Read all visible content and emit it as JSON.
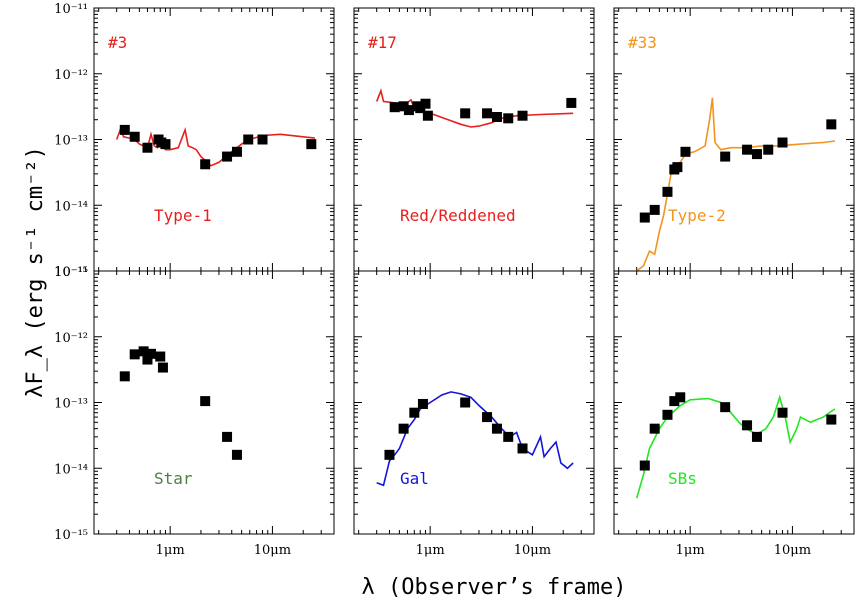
{
  "chart_data": {
    "type": "scatter",
    "xscale": "log",
    "yscale": "log",
    "xlim_um": [
      0.18,
      40
    ],
    "ylim": [
      1e-15,
      1e-11
    ],
    "xlabel": "λ  (Observer’s frame)",
    "ylabel": "λF_λ (erg s⁻¹ cm⁻²)",
    "ytick_labels": [
      "10⁻¹¹",
      "10⁻¹²",
      "10⁻¹³",
      "10⁻¹⁴",
      "10⁻¹⁵"
    ],
    "xtick_labels": [
      "1μm",
      "10μm"
    ],
    "panels": [
      {
        "id": "#3",
        "label": "Type-1",
        "color": "#e8201c",
        "id_color": "#e8201c",
        "points": [
          [
            0.36,
            1.4e-13
          ],
          [
            0.45,
            1.1e-13
          ],
          [
            0.6,
            7.5e-14
          ],
          [
            0.77,
            1e-13
          ],
          [
            0.82,
            9e-14
          ],
          [
            0.9,
            8.5e-14
          ],
          [
            2.2,
            4.2e-14
          ],
          [
            3.6,
            5.5e-14
          ],
          [
            4.5,
            6.5e-14
          ],
          [
            5.8,
            1e-13
          ],
          [
            8,
            1e-13
          ],
          [
            24,
            8.5e-14
          ]
        ],
        "curve": [
          [
            0.3,
            1e-13
          ],
          [
            0.33,
            1.5e-13
          ],
          [
            0.35,
            1.1e-13
          ],
          [
            0.4,
            1.05e-13
          ],
          [
            0.45,
            1e-13
          ],
          [
            0.5,
            8.5e-14
          ],
          [
            0.55,
            8e-14
          ],
          [
            0.6,
            7.5e-14
          ],
          [
            0.65,
            1.2e-13
          ],
          [
            0.7,
            8e-14
          ],
          [
            0.75,
            7.5e-14
          ],
          [
            0.8,
            8.5e-14
          ],
          [
            0.9,
            7e-14
          ],
          [
            1.0,
            7e-14
          ],
          [
            1.2,
            7.5e-14
          ],
          [
            1.4,
            1.4e-13
          ],
          [
            1.5,
            8e-14
          ],
          [
            1.65,
            7.5e-14
          ],
          [
            1.8,
            7e-14
          ],
          [
            2.0,
            5.5e-14
          ],
          [
            2.5,
            4e-14
          ],
          [
            3,
            4.5e-14
          ],
          [
            4,
            6.5e-14
          ],
          [
            5,
            8.5e-14
          ],
          [
            6,
            1e-13
          ],
          [
            8,
            1.15e-13
          ],
          [
            12,
            1.2e-13
          ],
          [
            20,
            1.1e-13
          ],
          [
            26,
            1.05e-13
          ]
        ]
      },
      {
        "id": "#17",
        "label": "Red/Reddened",
        "color": "#e8201c",
        "id_color": "#e8201c",
        "points": [
          [
            0.45,
            3.1e-13
          ],
          [
            0.55,
            3.2e-13
          ],
          [
            0.62,
            2.8e-13
          ],
          [
            0.75,
            3.2e-13
          ],
          [
            0.8,
            3e-13
          ],
          [
            0.9,
            3.5e-13
          ],
          [
            0.95,
            2.3e-13
          ],
          [
            2.2,
            2.5e-13
          ],
          [
            3.6,
            2.5e-13
          ],
          [
            4.5,
            2.2e-13
          ],
          [
            5.8,
            2.1e-13
          ],
          [
            8,
            2.3e-13
          ],
          [
            24,
            3.6e-13
          ]
        ],
        "curve": [
          [
            0.3,
            3.8e-13
          ],
          [
            0.33,
            5.5e-13
          ],
          [
            0.35,
            3.8e-13
          ],
          [
            0.45,
            3.6e-13
          ],
          [
            0.55,
            3.3e-13
          ],
          [
            0.65,
            4e-13
          ],
          [
            0.7,
            3e-13
          ],
          [
            0.8,
            2.8e-13
          ],
          [
            1.0,
            2.5e-13
          ],
          [
            1.5,
            2e-13
          ],
          [
            2,
            1.7e-13
          ],
          [
            2.5,
            1.55e-13
          ],
          [
            3,
            1.6e-13
          ],
          [
            4,
            1.8e-13
          ],
          [
            5,
            2.1e-13
          ],
          [
            7,
            2.3e-13
          ],
          [
            12,
            2.4e-13
          ],
          [
            25,
            2.5e-13
          ]
        ]
      },
      {
        "id": "#33",
        "label": "Type-2",
        "color": "#f0961e",
        "id_color": "#f0961e",
        "points": [
          [
            0.36,
            6.5e-15
          ],
          [
            0.45,
            8.5e-15
          ],
          [
            0.6,
            1.6e-14
          ],
          [
            0.7,
            3.5e-14
          ],
          [
            0.75,
            3.8e-14
          ],
          [
            0.9,
            6.5e-14
          ],
          [
            2.2,
            5.5e-14
          ],
          [
            3.6,
            7e-14
          ],
          [
            4.5,
            6e-14
          ],
          [
            5.8,
            7e-14
          ],
          [
            8,
            9e-14
          ],
          [
            24,
            1.7e-13
          ]
        ],
        "curve": [
          [
            0.3,
            1e-15
          ],
          [
            0.35,
            1.2e-15
          ],
          [
            0.4,
            2e-15
          ],
          [
            0.45,
            1.8e-15
          ],
          [
            0.5,
            4e-15
          ],
          [
            0.55,
            7e-15
          ],
          [
            0.6,
            1.5e-14
          ],
          [
            0.65,
            3e-14
          ],
          [
            0.7,
            4e-14
          ],
          [
            0.8,
            4.5e-14
          ],
          [
            0.9,
            6e-14
          ],
          [
            1.1,
            6.5e-14
          ],
          [
            1.4,
            8e-14
          ],
          [
            1.55,
            2e-13
          ],
          [
            1.65,
            4.3e-13
          ],
          [
            1.75,
            9e-14
          ],
          [
            2,
            7e-14
          ],
          [
            2.5,
            7.5e-14
          ],
          [
            3.5,
            7.5e-14
          ],
          [
            5,
            8e-14
          ],
          [
            7,
            8e-14
          ],
          [
            12,
            8.5e-14
          ],
          [
            20,
            9e-14
          ],
          [
            26,
            9.5e-14
          ]
        ]
      },
      {
        "id": "",
        "label": "Star",
        "color": "#4a8040",
        "id_color": "#4a8040",
        "points": [
          [
            0.36,
            2.5e-13
          ],
          [
            0.45,
            5.4e-13
          ],
          [
            0.55,
            6e-13
          ],
          [
            0.6,
            4.5e-13
          ],
          [
            0.65,
            5.5e-13
          ],
          [
            0.8,
            5e-13
          ],
          [
            0.85,
            3.4e-13
          ],
          [
            2.2,
            1.05e-13
          ],
          [
            3.6,
            3e-14
          ],
          [
            4.5,
            1.6e-14
          ]
        ],
        "curve": []
      },
      {
        "id": "",
        "label": "Gal",
        "color": "#1414d8",
        "id_color": "#1414d8",
        "points": [
          [
            0.4,
            1.6e-14
          ],
          [
            0.55,
            4e-14
          ],
          [
            0.7,
            7e-14
          ],
          [
            0.85,
            9.5e-14
          ],
          [
            2.2,
            1e-13
          ],
          [
            3.6,
            6e-14
          ],
          [
            4.5,
            4e-14
          ],
          [
            5.8,
            3e-14
          ],
          [
            8,
            2e-14
          ]
        ],
        "curve": [
          [
            0.3,
            6e-15
          ],
          [
            0.35,
            5.5e-15
          ],
          [
            0.4,
            1.3e-14
          ],
          [
            0.45,
            1.6e-14
          ],
          [
            0.5,
            2e-14
          ],
          [
            0.6,
            4e-14
          ],
          [
            0.7,
            5.5e-14
          ],
          [
            0.8,
            8e-14
          ],
          [
            1.0,
            1e-13
          ],
          [
            1.3,
            1.3e-13
          ],
          [
            1.6,
            1.45e-13
          ],
          [
            2.0,
            1.35e-13
          ],
          [
            2.5,
            1.2e-13
          ],
          [
            3,
            9e-14
          ],
          [
            4,
            6e-14
          ],
          [
            5,
            4e-14
          ],
          [
            6,
            3e-14
          ],
          [
            7,
            3.5e-14
          ],
          [
            8,
            2e-14
          ],
          [
            10,
            1.6e-14
          ],
          [
            12,
            3e-14
          ],
          [
            13,
            1.5e-14
          ],
          [
            15,
            2e-14
          ],
          [
            17,
            2.5e-14
          ],
          [
            19,
            1.2e-14
          ],
          [
            22,
            1e-14
          ],
          [
            25,
            1.2e-14
          ]
        ]
      },
      {
        "id": "",
        "label": "SBs",
        "color": "#1ee81e",
        "id_color": "#1ee81e",
        "points": [
          [
            0.36,
            1.1e-14
          ],
          [
            0.45,
            4e-14
          ],
          [
            0.6,
            6.5e-14
          ],
          [
            0.7,
            1.05e-13
          ],
          [
            0.8,
            1.2e-13
          ],
          [
            2.2,
            8.5e-14
          ],
          [
            3.6,
            4.5e-14
          ],
          [
            4.5,
            3e-14
          ],
          [
            8,
            7e-14
          ],
          [
            24,
            5.5e-14
          ]
        ],
        "curve": [
          [
            0.3,
            3.5e-15
          ],
          [
            0.35,
            8e-15
          ],
          [
            0.4,
            2e-14
          ],
          [
            0.5,
            4e-14
          ],
          [
            0.6,
            6e-14
          ],
          [
            0.8,
            9e-14
          ],
          [
            1.0,
            1.1e-13
          ],
          [
            1.5,
            1.15e-13
          ],
          [
            2.0,
            1e-13
          ],
          [
            2.5,
            7e-14
          ],
          [
            3,
            5e-14
          ],
          [
            3.5,
            4e-14
          ],
          [
            4.5,
            3.3e-14
          ],
          [
            5.5,
            4e-14
          ],
          [
            6.5,
            6e-14
          ],
          [
            7.5,
            1.2e-13
          ],
          [
            8.5,
            6e-14
          ],
          [
            9.5,
            2.5e-14
          ],
          [
            11,
            4e-14
          ],
          [
            12,
            6e-14
          ],
          [
            15,
            5e-14
          ],
          [
            20,
            6e-14
          ],
          [
            26,
            8e-14
          ]
        ]
      }
    ]
  }
}
